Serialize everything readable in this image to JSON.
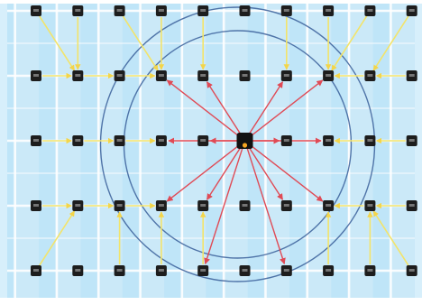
{
  "diagram": {
    "grid": {
      "columns": 10,
      "rows": 5
    },
    "central_node": {
      "column": 6,
      "row": 3
    },
    "rings": 2,
    "colors": {
      "background": "#cbe9f8",
      "cell": "#b7e2f7",
      "gridline": "#ffffff",
      "node": "#1d1d1d",
      "central_node": "#111111",
      "central_dot": "#f5a623",
      "ring": "#3a5f9a",
      "primary_edge": "#e04a55",
      "secondary_edge": "#f3e46a"
    },
    "primary_edges": [
      [
        6,
        3,
        4,
        2
      ],
      [
        6,
        3,
        5,
        2
      ],
      [
        6,
        3,
        7,
        2
      ],
      [
        6,
        3,
        8,
        2
      ],
      [
        6,
        3,
        4,
        3
      ],
      [
        6,
        3,
        5,
        3
      ],
      [
        6,
        3,
        7,
        3
      ],
      [
        6,
        3,
        8,
        3
      ],
      [
        6,
        3,
        4,
        4
      ],
      [
        6,
        3,
        5,
        4
      ],
      [
        6,
        3,
        7,
        4
      ],
      [
        6,
        3,
        8,
        4
      ],
      [
        6,
        3,
        5,
        5
      ],
      [
        6,
        3,
        7,
        5
      ]
    ],
    "secondary_edges": [
      [
        1,
        1,
        2,
        2
      ],
      [
        2,
        1,
        2,
        2
      ],
      [
        3,
        1,
        4,
        2
      ],
      [
        4,
        1,
        4,
        2
      ],
      [
        5,
        1,
        5,
        2
      ],
      [
        7,
        1,
        7,
        2
      ],
      [
        8,
        1,
        8,
        2
      ],
      [
        9,
        1,
        8,
        2
      ],
      [
        10,
        1,
        9,
        2
      ],
      [
        1,
        2,
        2,
        2
      ],
      [
        2,
        2,
        3,
        2
      ],
      [
        3,
        2,
        4,
        2
      ],
      [
        9,
        2,
        8,
        2
      ],
      [
        10,
        2,
        9,
        2
      ],
      [
        1,
        3,
        2,
        3
      ],
      [
        2,
        3,
        3,
        3
      ],
      [
        3,
        3,
        4,
        3
      ],
      [
        9,
        3,
        8,
        3
      ],
      [
        10,
        3,
        9,
        3
      ],
      [
        1,
        4,
        2,
        4
      ],
      [
        2,
        4,
        3,
        4
      ],
      [
        3,
        4,
        4,
        4
      ],
      [
        9,
        4,
        8,
        4
      ],
      [
        10,
        4,
        9,
        4
      ],
      [
        1,
        5,
        2,
        4
      ],
      [
        3,
        5,
        3,
        4
      ],
      [
        4,
        5,
        4,
        4
      ],
      [
        5,
        5,
        5,
        4
      ],
      [
        8,
        5,
        8,
        4
      ],
      [
        9,
        5,
        9,
        4
      ],
      [
        10,
        5,
        9,
        4
      ]
    ]
  }
}
